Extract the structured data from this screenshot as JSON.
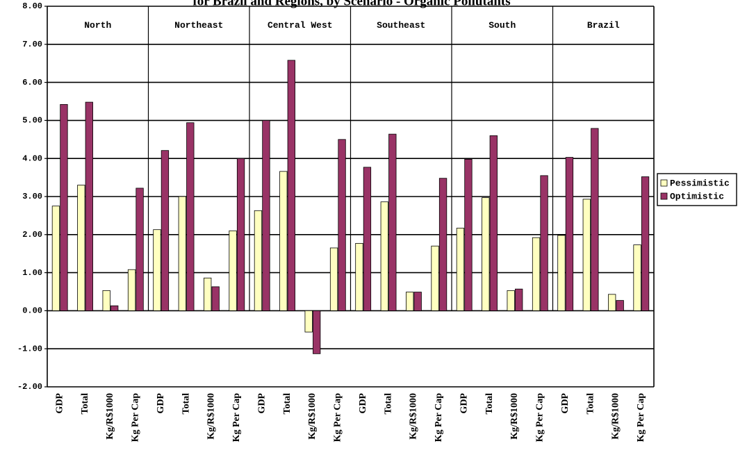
{
  "chart_data": {
    "type": "bar",
    "title": "for Brazil and Regions, by Scenario - Organic Pollutants",
    "xlabel": "",
    "ylabel": "",
    "ylim": [
      -2,
      8
    ],
    "yticks": [
      "8.00",
      "7.00",
      "6.00",
      "5.00",
      "4.00",
      "3.00",
      "2.00",
      "1.00",
      "0.00",
      "-1.00",
      "-2.00"
    ],
    "grid": true,
    "legend_position": "right",
    "groups": [
      "North",
      "Northeast",
      "Central West",
      "Southeast",
      "South",
      "Brazil"
    ],
    "subcategories": [
      "GDP",
      "Total",
      "Kg/R$1000",
      "Kg Per Cap"
    ],
    "series": [
      {
        "name": "Pessimistic",
        "color": "#ffffc0",
        "values": [
          2.75,
          3.3,
          0.53,
          1.08,
          2.13,
          3.0,
          0.86,
          2.1,
          2.63,
          3.66,
          -0.56,
          1.65,
          1.77,
          2.86,
          0.49,
          1.7,
          2.17,
          2.97,
          0.53,
          1.92,
          1.98,
          2.93,
          0.43,
          1.73
        ]
      },
      {
        "name": "Optimistic",
        "color": "#993366",
        "values": [
          5.42,
          5.48,
          0.13,
          3.22,
          4.21,
          4.94,
          0.63,
          4.0,
          5.0,
          6.58,
          -1.13,
          4.5,
          3.77,
          4.64,
          0.49,
          3.48,
          3.98,
          4.6,
          0.57,
          3.55,
          4.03,
          4.79,
          0.27,
          3.52
        ]
      }
    ]
  }
}
